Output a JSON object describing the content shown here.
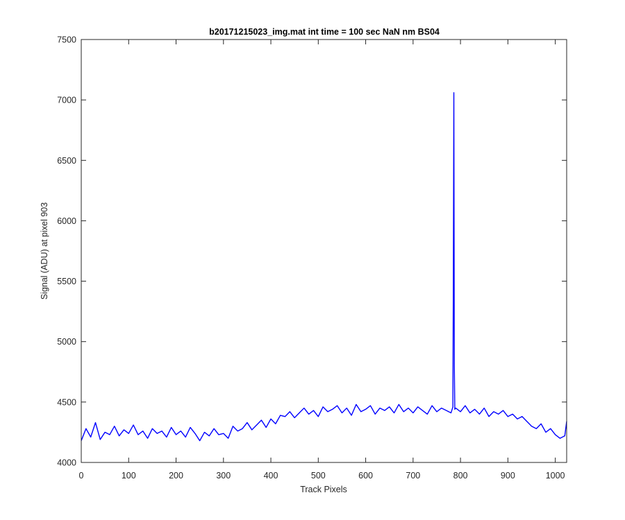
{
  "chart_data": {
    "type": "line",
    "title": "b20171215023_img.mat int time = 100 sec  NaN nm BS04",
    "xlabel": "Track Pixels",
    "ylabel": "Signal (ADU) at pixel 903",
    "xlim": [
      0,
      1024
    ],
    "ylim": [
      4000,
      7500
    ],
    "xticks": [
      "0",
      "100",
      "200",
      "300",
      "400",
      "500",
      "600",
      "700",
      "800",
      "900",
      "1000"
    ],
    "xtick_values": [
      0,
      100,
      200,
      300,
      400,
      500,
      600,
      700,
      800,
      900,
      1000
    ],
    "yticks": [
      "4000",
      "4500",
      "5000",
      "5500",
      "6000",
      "6500",
      "7000",
      "7500"
    ],
    "ytick_values": [
      4000,
      4500,
      5000,
      5500,
      6000,
      6500,
      7000,
      7500
    ],
    "grid": false,
    "box": true,
    "series": [
      {
        "color": "#0000ff",
        "x": [
          0,
          10,
          20,
          30,
          40,
          50,
          60,
          70,
          80,
          90,
          100,
          110,
          120,
          130,
          140,
          150,
          160,
          170,
          180,
          190,
          200,
          210,
          220,
          230,
          240,
          250,
          260,
          270,
          280,
          290,
          300,
          310,
          320,
          330,
          340,
          350,
          360,
          370,
          380,
          390,
          400,
          410,
          420,
          430,
          440,
          450,
          460,
          470,
          480,
          490,
          500,
          510,
          520,
          530,
          540,
          550,
          560,
          570,
          580,
          590,
          600,
          610,
          620,
          630,
          640,
          650,
          660,
          670,
          680,
          690,
          700,
          710,
          720,
          730,
          740,
          750,
          760,
          770,
          780,
          784,
          785,
          786,
          787,
          788,
          790,
          800,
          810,
          820,
          830,
          840,
          850,
          860,
          870,
          880,
          890,
          900,
          910,
          920,
          930,
          940,
          950,
          960,
          970,
          980,
          990,
          1000,
          1010,
          1020,
          1024
        ],
        "y": [
          4180,
          4280,
          4210,
          4330,
          4190,
          4250,
          4230,
          4300,
          4220,
          4270,
          4240,
          4310,
          4230,
          4260,
          4200,
          4280,
          4240,
          4260,
          4210,
          4290,
          4230,
          4260,
          4210,
          4290,
          4240,
          4180,
          4250,
          4220,
          4280,
          4230,
          4240,
          4200,
          4300,
          4260,
          4280,
          4330,
          4270,
          4310,
          4350,
          4290,
          4360,
          4320,
          4390,
          4380,
          4420,
          4370,
          4410,
          4450,
          4400,
          4430,
          4380,
          4460,
          4420,
          4440,
          4470,
          4410,
          4450,
          4390,
          4480,
          4420,
          4440,
          4470,
          4400,
          4450,
          4430,
          4460,
          4410,
          4480,
          4420,
          4450,
          4410,
          4460,
          4430,
          4400,
          4470,
          4420,
          4450,
          4430,
          4410,
          4460,
          5600,
          7060,
          4800,
          4440,
          4450,
          4420,
          4470,
          4410,
          4440,
          4400,
          4450,
          4380,
          4420,
          4400,
          4430,
          4380,
          4400,
          4360,
          4380,
          4340,
          4300,
          4280,
          4320,
          4250,
          4280,
          4230,
          4200,
          4220,
          4340
        ]
      }
    ]
  }
}
